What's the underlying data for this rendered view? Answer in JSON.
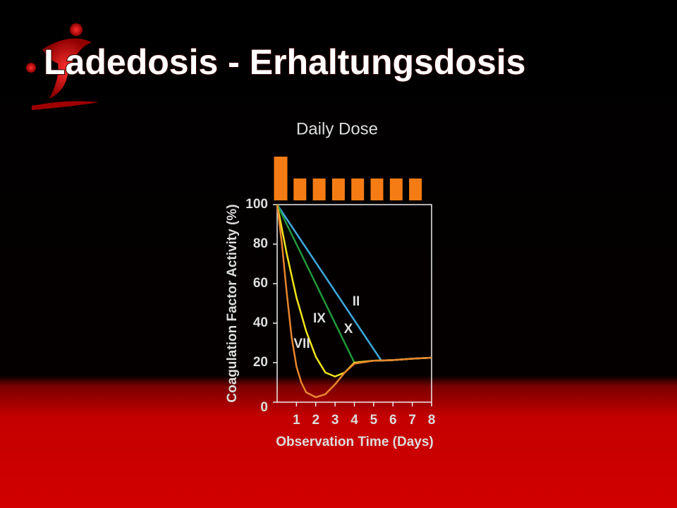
{
  "title": "Ladedosis - Erhaltungsdosis",
  "chart_data": [
    {
      "type": "bar",
      "title": "Daily Dose",
      "values": [
        2,
        1,
        1,
        1,
        1,
        1,
        1,
        1
      ],
      "color": "#f57c14"
    },
    {
      "type": "line",
      "xlabel": "Observation Time (Days)",
      "ylabel": "Coagulation Factor Activity (%)",
      "xlim": [
        0,
        8
      ],
      "ylim": [
        0,
        100
      ],
      "xticks": [
        1,
        2,
        3,
        4,
        5,
        6,
        7,
        8
      ],
      "yticks": [
        0,
        20,
        40,
        60,
        80,
        100
      ],
      "series": [
        {
          "name": "II",
          "color": "#3fa9e0",
          "x": [
            0,
            5.4,
            6,
            7,
            8
          ],
          "values": [
            100,
            21,
            21.3,
            22,
            22.5
          ]
        },
        {
          "name": "X",
          "color": "#1f9a3a",
          "x": [
            0,
            4,
            5,
            6,
            7,
            8
          ],
          "values": [
            100,
            20,
            21,
            21.3,
            22,
            22.5
          ]
        },
        {
          "name": "IX",
          "color": "#f2e51c",
          "x": [
            0,
            0.5,
            1,
            1.5,
            2,
            2.5,
            3,
            3.5,
            4,
            5,
            6,
            7,
            8
          ],
          "values": [
            100,
            75,
            53,
            36,
            23,
            15,
            13,
            15,
            20,
            21,
            21.3,
            22,
            22.5
          ]
        },
        {
          "name": "VII",
          "color": "#e8852f",
          "x": [
            0,
            0.25,
            0.5,
            0.75,
            1,
            1.25,
            1.5,
            2,
            2.5,
            3,
            3.5,
            4,
            5,
            6,
            7,
            8
          ],
          "values": [
            100,
            80,
            55,
            33,
            18,
            10,
            5,
            2.5,
            4,
            9,
            15,
            19.5,
            21,
            21.3,
            22,
            22.5
          ]
        }
      ]
    }
  ]
}
